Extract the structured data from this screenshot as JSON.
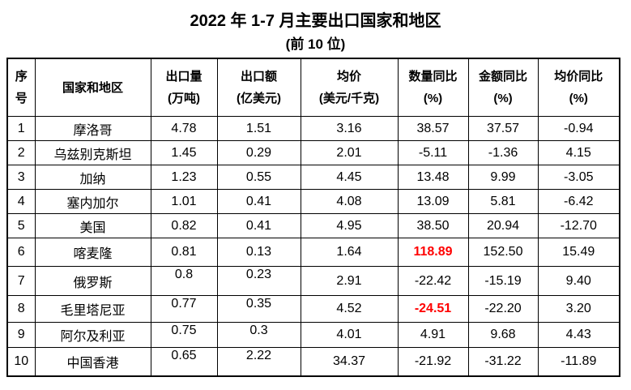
{
  "title": "2022 年 1-7 月主要出口国家和地区",
  "subtitle": "(前 10 位)",
  "colors": {
    "text": "#000000",
    "border": "#000000",
    "background": "#FFFFFF",
    "highlight_red": "#FF0000"
  },
  "table": {
    "column_keys": [
      "rank",
      "country",
      "export_volume",
      "export_value",
      "avg_price",
      "volume_yoy",
      "value_yoy",
      "price_yoy"
    ],
    "headers": [
      {
        "lines": [
          "序",
          "号"
        ]
      },
      {
        "lines": [
          "国家和地区"
        ]
      },
      {
        "lines": [
          "出口量",
          "(万吨)"
        ]
      },
      {
        "lines": [
          "出口额",
          "(亿美元)"
        ]
      },
      {
        "lines": [
          "均价",
          "(美元/千克)"
        ]
      },
      {
        "lines": [
          "数量同比",
          "(%)"
        ]
      },
      {
        "lines": [
          "金额同比",
          "(%)"
        ]
      },
      {
        "lines": [
          "均价同比",
          "(%)"
        ]
      }
    ],
    "rows": [
      {
        "rank": "1",
        "country": "摩洛哥",
        "export_volume": "4.78",
        "export_value": "1.51",
        "avg_price": "3.16",
        "volume_yoy": "38.57",
        "value_yoy": "37.57",
        "price_yoy": "-0.94"
      },
      {
        "rank": "2",
        "country": "乌兹别克斯坦",
        "export_volume": "1.45",
        "export_value": "0.29",
        "avg_price": "2.01",
        "volume_yoy": "-5.11",
        "value_yoy": "-1.36",
        "price_yoy": "4.15"
      },
      {
        "rank": "3",
        "country": "加纳",
        "export_volume": "1.23",
        "export_value": "0.55",
        "avg_price": "4.45",
        "volume_yoy": "13.48",
        "value_yoy": "9.99",
        "price_yoy": "-3.05"
      },
      {
        "rank": "4",
        "country": "塞内加尔",
        "export_volume": "1.01",
        "export_value": "0.41",
        "avg_price": "4.08",
        "volume_yoy": "13.09",
        "value_yoy": "5.81",
        "price_yoy": "-6.42"
      },
      {
        "rank": "5",
        "country": "美国",
        "export_volume": "0.82",
        "export_value": "0.41",
        "avg_price": "4.95",
        "volume_yoy": "38.50",
        "value_yoy": "20.94",
        "price_yoy": "-12.70"
      },
      {
        "rank": "6",
        "country": "喀麦隆",
        "export_volume": "0.81",
        "export_value": "0.13",
        "avg_price": "1.64",
        "volume_yoy": "118.89",
        "value_yoy": "152.50",
        "price_yoy": "15.49",
        "highlight": "volume_yoy"
      },
      {
        "rank": "7",
        "country": "俄罗斯",
        "export_volume": "0.8",
        "export_value": "0.23",
        "avg_price": "2.91",
        "volume_yoy": "-22.42",
        "value_yoy": "-15.19",
        "price_yoy": "9.40"
      },
      {
        "rank": "8",
        "country": "毛里塔尼亚",
        "export_volume": "0.77",
        "export_value": "0.35",
        "avg_price": "4.52",
        "volume_yoy": "-24.51",
        "value_yoy": "-22.20",
        "price_yoy": "3.20",
        "highlight": "volume_yoy"
      },
      {
        "rank": "9",
        "country": "阿尔及利亚",
        "export_volume": "0.75",
        "export_value": "0.3",
        "avg_price": "4.01",
        "volume_yoy": "4.91",
        "value_yoy": "9.68",
        "price_yoy": "4.43"
      },
      {
        "rank": "10",
        "country": "中国香港",
        "export_volume": "0.65",
        "export_value": "2.22",
        "avg_price": "34.37",
        "volume_yoy": "-21.92",
        "value_yoy": "-31.22",
        "price_yoy": "-11.89"
      }
    ]
  }
}
